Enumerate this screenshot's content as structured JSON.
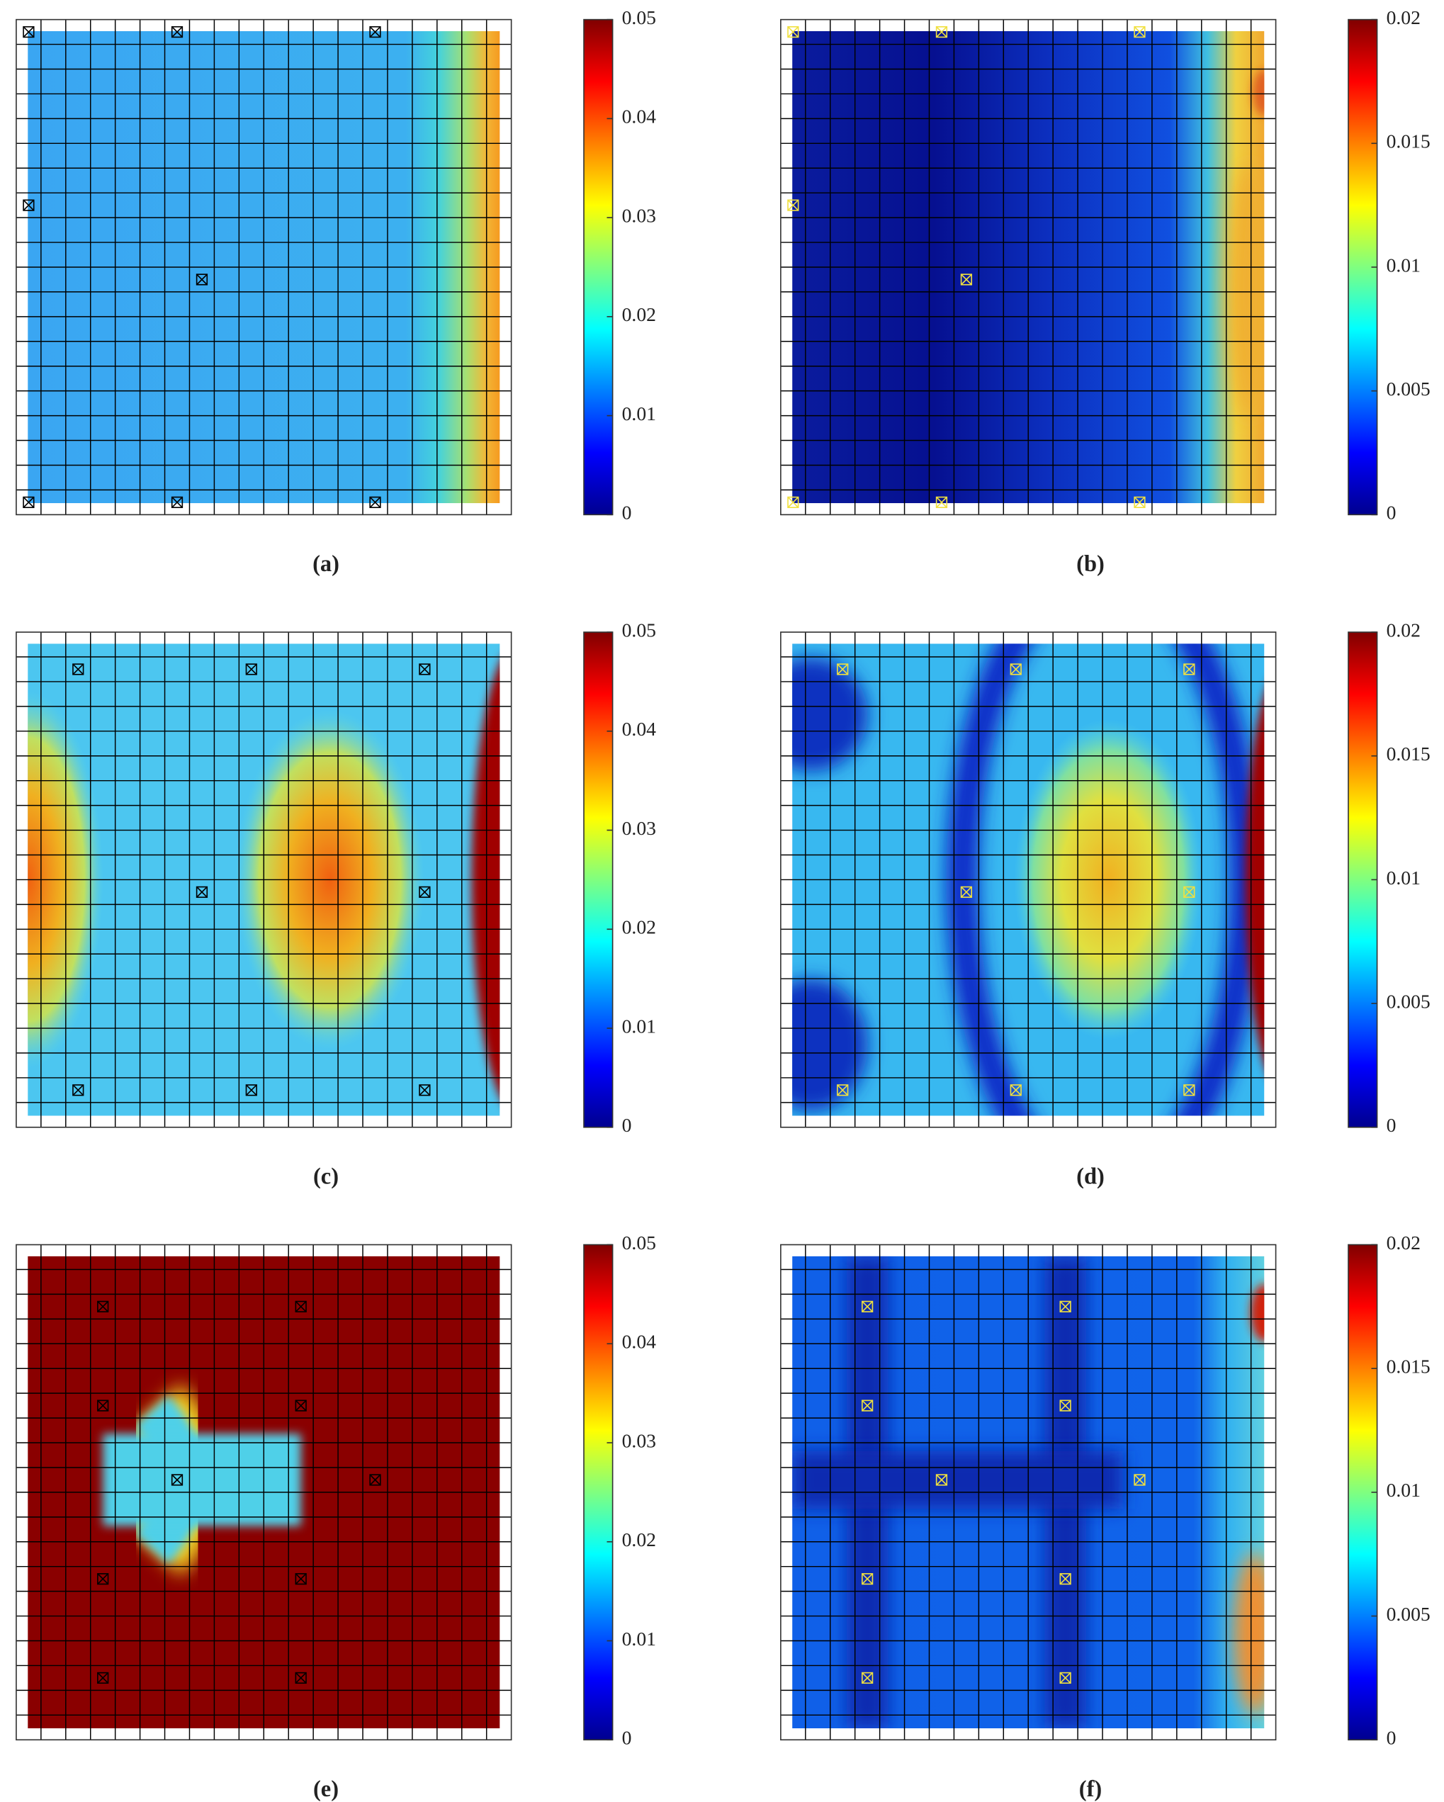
{
  "chart_data": [
    {
      "type": "heatmap",
      "label": "(a)",
      "clim": [
        0,
        0.05
      ],
      "cticks": [
        0,
        0.01,
        0.02,
        0.03,
        0.04,
        0.05
      ],
      "marker_color": "#000000",
      "sensors": {
        "x": [
          0.5,
          6.5,
          14.5,
          0.5,
          7.5,
          0.5,
          6.5,
          14.5
        ],
        "y": [
          0.5,
          0.5,
          0.5,
          7.5,
          10.5,
          19.5,
          19.5,
          19.5
        ]
      }
    },
    {
      "type": "heatmap",
      "label": "(b)",
      "clim": [
        0,
        0.02
      ],
      "cticks": [
        0,
        0.005,
        0.01,
        0.015,
        0.02
      ],
      "marker_color": "#f0e040",
      "sensors": {
        "x": [
          0.5,
          6.5,
          14.5,
          0.5,
          7.5,
          0.5,
          6.5,
          14.5
        ],
        "y": [
          0.5,
          0.5,
          0.5,
          7.5,
          10.5,
          19.5,
          19.5,
          19.5
        ]
      }
    },
    {
      "type": "heatmap",
      "label": "(c)",
      "clim": [
        0,
        0.05
      ],
      "cticks": [
        0,
        0.01,
        0.02,
        0.03,
        0.04,
        0.05
      ],
      "marker_color": "#000000",
      "sensors": {
        "x": [
          2.5,
          9.5,
          16.5,
          7.5,
          16.5,
          2.5,
          9.5,
          16.5
        ],
        "y": [
          1.5,
          1.5,
          1.5,
          10.5,
          10.5,
          18.5,
          18.5,
          18.5
        ]
      }
    },
    {
      "type": "heatmap",
      "label": "(d)",
      "clim": [
        0,
        0.02
      ],
      "cticks": [
        0,
        0.005,
        0.01,
        0.015,
        0.02
      ],
      "marker_color": "#f0e040",
      "sensors": {
        "x": [
          2.5,
          9.5,
          16.5,
          7.5,
          16.5,
          2.5,
          9.5,
          16.5
        ],
        "y": [
          1.5,
          1.5,
          1.5,
          10.5,
          10.5,
          18.5,
          18.5,
          18.5
        ]
      }
    },
    {
      "type": "heatmap",
      "label": "(e)",
      "clim": [
        0,
        0.05
      ],
      "cticks": [
        0,
        0.01,
        0.02,
        0.03,
        0.04,
        0.05
      ],
      "marker_color": "#000000",
      "sensors": {
        "x": [
          3.5,
          11.5,
          3.5,
          11.5,
          6.5,
          14.5,
          3.5,
          11.5,
          3.5,
          11.5
        ],
        "y": [
          2.5,
          2.5,
          6.5,
          6.5,
          9.5,
          9.5,
          13.5,
          13.5,
          17.5,
          17.5
        ]
      }
    },
    {
      "type": "heatmap",
      "label": "(f)",
      "clim": [
        0,
        0.02
      ],
      "cticks": [
        0,
        0.005,
        0.01,
        0.015,
        0.02
      ],
      "marker_color": "#f0e040",
      "sensors": {
        "x": [
          3.5,
          11.5,
          3.5,
          11.5,
          6.5,
          14.5,
          3.5,
          11.5,
          3.5,
          11.5
        ],
        "y": [
          2.5,
          2.5,
          6.5,
          6.5,
          9.5,
          9.5,
          13.5,
          13.5,
          17.5,
          17.5
        ]
      }
    }
  ]
}
